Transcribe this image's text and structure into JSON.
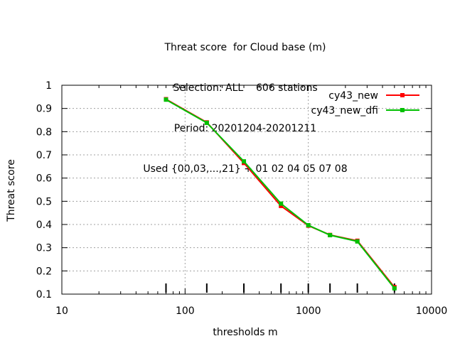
{
  "chart_data": {
    "type": "line",
    "title_lines": [
      "Threat score  for Cloud base (m)",
      "Selection: ALL    606 stations",
      "Period: 20201204-20201211",
      "Used {00,03,...,21} + 01 02 04 05 07 08"
    ],
    "xlabel": "thresholds m",
    "ylabel": "Threat score",
    "x_scale": "log",
    "xlim": [
      10,
      10000
    ],
    "ylim": [
      0.1,
      1
    ],
    "x_ticks": [
      10,
      100,
      1000,
      10000
    ],
    "x_tick_labels": [
      "10",
      "100",
      "1000",
      "10000"
    ],
    "y_ticks": [
      0.1,
      0.2,
      0.3,
      0.4,
      0.5,
      0.6,
      0.7,
      0.8,
      0.9,
      1
    ],
    "y_tick_labels": [
      "0.1",
      "0.2",
      "0.3",
      "0.4",
      "0.5",
      "0.6",
      "0.7",
      "0.8",
      "0.9",
      "1"
    ],
    "grid": true,
    "legend_position": "top-right",
    "threshold_markers": [
      70,
      150,
      300,
      600,
      1000,
      1500,
      2500,
      5000
    ],
    "series": [
      {
        "name": "cy43_new",
        "color": "#ff0000",
        "x": [
          70,
          150,
          300,
          600,
          1000,
          1500,
          2500,
          5000
        ],
        "y": [
          0.94,
          0.84,
          0.665,
          0.48,
          0.395,
          0.355,
          0.33,
          0.13
        ]
      },
      {
        "name": "cy43_new_dfi",
        "color": "#00c000",
        "x": [
          70,
          150,
          300,
          600,
          1000,
          1500,
          2500,
          5000
        ],
        "y": [
          0.938,
          0.838,
          0.672,
          0.49,
          0.397,
          0.354,
          0.327,
          0.125
        ]
      }
    ]
  }
}
